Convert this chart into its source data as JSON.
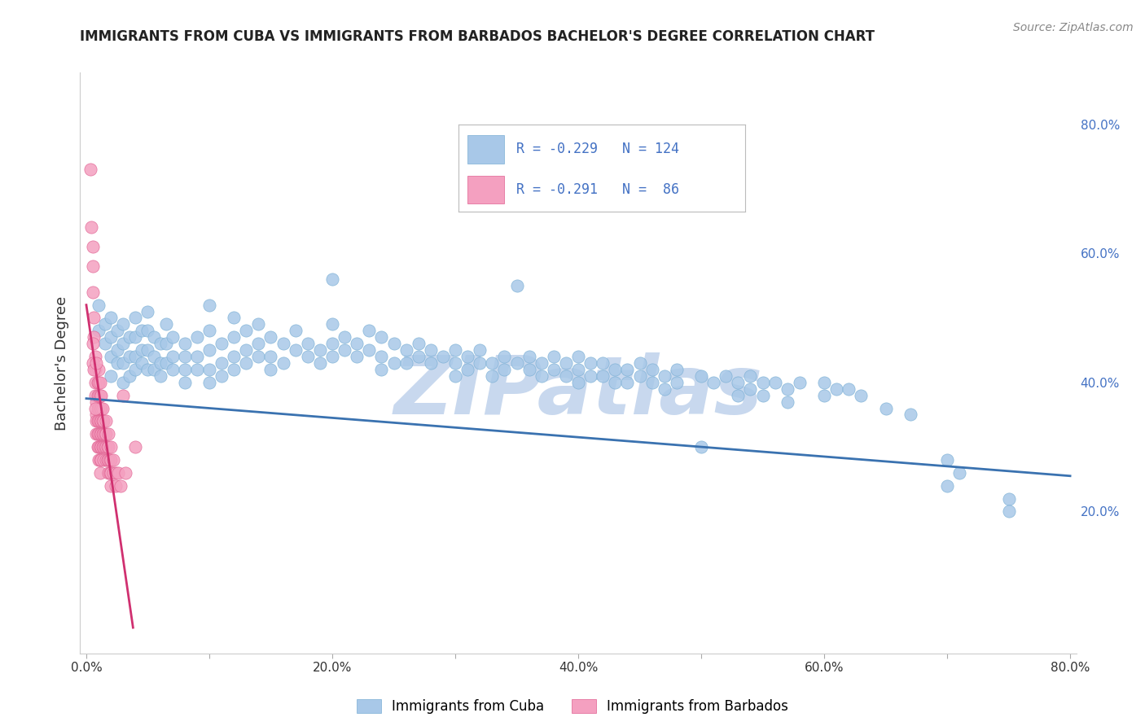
{
  "title": "IMMIGRANTS FROM CUBA VS IMMIGRANTS FROM BARBADOS BACHELOR'S DEGREE CORRELATION CHART",
  "source_text": "Source: ZipAtlas.com",
  "ylabel": "Bachelor's Degree",
  "xlim": [
    -0.005,
    0.805
  ],
  "ylim": [
    -0.02,
    0.88
  ],
  "xticks": [
    0.0,
    0.1,
    0.2,
    0.3,
    0.4,
    0.5,
    0.6,
    0.7,
    0.8
  ],
  "xticklabels": [
    "0.0%",
    "",
    "20.0%",
    "",
    "40.0%",
    "",
    "60.0%",
    "",
    "80.0%"
  ],
  "yticks_right": [
    0.2,
    0.4,
    0.6,
    0.8
  ],
  "ytick_labels_right": [
    "20.0%",
    "40.0%",
    "60.0%",
    "80.0%"
  ],
  "legend_r1": "-0.229",
  "legend_n1": "124",
  "legend_r2": "-0.291",
  "legend_n2": "86",
  "cuba_color": "#a8c8e8",
  "barbados_color": "#f4a0c0",
  "cuba_edge_color": "#7aafd4",
  "barbados_edge_color": "#e06090",
  "cuba_line_color": "#3a72b0",
  "barbados_line_color": "#d03070",
  "watermark": "ZIPatlas",
  "watermark_color": "#c8d8ee",
  "background_color": "#ffffff",
  "grid_color": "#cccccc",
  "legend_blue": "#4472c4",
  "cuba_scatter": [
    [
      0.01,
      0.52
    ],
    [
      0.01,
      0.48
    ],
    [
      0.015,
      0.49
    ],
    [
      0.015,
      0.46
    ],
    [
      0.02,
      0.5
    ],
    [
      0.02,
      0.47
    ],
    [
      0.02,
      0.44
    ],
    [
      0.02,
      0.41
    ],
    [
      0.025,
      0.48
    ],
    [
      0.025,
      0.45
    ],
    [
      0.025,
      0.43
    ],
    [
      0.03,
      0.49
    ],
    [
      0.03,
      0.46
    ],
    [
      0.03,
      0.43
    ],
    [
      0.03,
      0.4
    ],
    [
      0.035,
      0.47
    ],
    [
      0.035,
      0.44
    ],
    [
      0.035,
      0.41
    ],
    [
      0.04,
      0.5
    ],
    [
      0.04,
      0.47
    ],
    [
      0.04,
      0.44
    ],
    [
      0.04,
      0.42
    ],
    [
      0.045,
      0.48
    ],
    [
      0.045,
      0.45
    ],
    [
      0.045,
      0.43
    ],
    [
      0.05,
      0.51
    ],
    [
      0.05,
      0.48
    ],
    [
      0.05,
      0.45
    ],
    [
      0.05,
      0.42
    ],
    [
      0.055,
      0.47
    ],
    [
      0.055,
      0.44
    ],
    [
      0.055,
      0.42
    ],
    [
      0.06,
      0.46
    ],
    [
      0.06,
      0.43
    ],
    [
      0.06,
      0.41
    ],
    [
      0.065,
      0.49
    ],
    [
      0.065,
      0.46
    ],
    [
      0.065,
      0.43
    ],
    [
      0.07,
      0.47
    ],
    [
      0.07,
      0.44
    ],
    [
      0.07,
      0.42
    ],
    [
      0.08,
      0.46
    ],
    [
      0.08,
      0.44
    ],
    [
      0.08,
      0.42
    ],
    [
      0.08,
      0.4
    ],
    [
      0.09,
      0.47
    ],
    [
      0.09,
      0.44
    ],
    [
      0.09,
      0.42
    ],
    [
      0.1,
      0.52
    ],
    [
      0.1,
      0.48
    ],
    [
      0.1,
      0.45
    ],
    [
      0.1,
      0.42
    ],
    [
      0.1,
      0.4
    ],
    [
      0.11,
      0.46
    ],
    [
      0.11,
      0.43
    ],
    [
      0.11,
      0.41
    ],
    [
      0.12,
      0.5
    ],
    [
      0.12,
      0.47
    ],
    [
      0.12,
      0.44
    ],
    [
      0.12,
      0.42
    ],
    [
      0.13,
      0.48
    ],
    [
      0.13,
      0.45
    ],
    [
      0.13,
      0.43
    ],
    [
      0.14,
      0.49
    ],
    [
      0.14,
      0.46
    ],
    [
      0.14,
      0.44
    ],
    [
      0.15,
      0.47
    ],
    [
      0.15,
      0.44
    ],
    [
      0.15,
      0.42
    ],
    [
      0.16,
      0.46
    ],
    [
      0.16,
      0.43
    ],
    [
      0.17,
      0.48
    ],
    [
      0.17,
      0.45
    ],
    [
      0.18,
      0.46
    ],
    [
      0.18,
      0.44
    ],
    [
      0.19,
      0.45
    ],
    [
      0.19,
      0.43
    ],
    [
      0.2,
      0.56
    ],
    [
      0.2,
      0.49
    ],
    [
      0.2,
      0.46
    ],
    [
      0.2,
      0.44
    ],
    [
      0.21,
      0.47
    ],
    [
      0.21,
      0.45
    ],
    [
      0.22,
      0.46
    ],
    [
      0.22,
      0.44
    ],
    [
      0.23,
      0.48
    ],
    [
      0.23,
      0.45
    ],
    [
      0.24,
      0.47
    ],
    [
      0.24,
      0.44
    ],
    [
      0.24,
      0.42
    ],
    [
      0.25,
      0.46
    ],
    [
      0.25,
      0.43
    ],
    [
      0.26,
      0.45
    ],
    [
      0.26,
      0.43
    ],
    [
      0.27,
      0.46
    ],
    [
      0.27,
      0.44
    ],
    [
      0.28,
      0.45
    ],
    [
      0.28,
      0.43
    ],
    [
      0.29,
      0.44
    ],
    [
      0.3,
      0.45
    ],
    [
      0.3,
      0.43
    ],
    [
      0.3,
      0.41
    ],
    [
      0.31,
      0.44
    ],
    [
      0.31,
      0.42
    ],
    [
      0.32,
      0.45
    ],
    [
      0.32,
      0.43
    ],
    [
      0.33,
      0.43
    ],
    [
      0.33,
      0.41
    ],
    [
      0.34,
      0.44
    ],
    [
      0.34,
      0.42
    ],
    [
      0.35,
      0.55
    ],
    [
      0.35,
      0.43
    ],
    [
      0.36,
      0.44
    ],
    [
      0.36,
      0.42
    ],
    [
      0.37,
      0.43
    ],
    [
      0.37,
      0.41
    ],
    [
      0.38,
      0.44
    ],
    [
      0.38,
      0.42
    ],
    [
      0.39,
      0.43
    ],
    [
      0.39,
      0.41
    ],
    [
      0.4,
      0.44
    ],
    [
      0.4,
      0.42
    ],
    [
      0.4,
      0.4
    ],
    [
      0.41,
      0.43
    ],
    [
      0.41,
      0.41
    ],
    [
      0.42,
      0.43
    ],
    [
      0.42,
      0.41
    ],
    [
      0.43,
      0.42
    ],
    [
      0.43,
      0.4
    ],
    [
      0.44,
      0.42
    ],
    [
      0.44,
      0.4
    ],
    [
      0.45,
      0.43
    ],
    [
      0.45,
      0.41
    ],
    [
      0.46,
      0.42
    ],
    [
      0.46,
      0.4
    ],
    [
      0.47,
      0.41
    ],
    [
      0.47,
      0.39
    ],
    [
      0.48,
      0.42
    ],
    [
      0.48,
      0.4
    ],
    [
      0.5,
      0.41
    ],
    [
      0.5,
      0.3
    ],
    [
      0.51,
      0.4
    ],
    [
      0.52,
      0.41
    ],
    [
      0.53,
      0.4
    ],
    [
      0.53,
      0.38
    ],
    [
      0.54,
      0.41
    ],
    [
      0.54,
      0.39
    ],
    [
      0.55,
      0.4
    ],
    [
      0.55,
      0.38
    ],
    [
      0.56,
      0.4
    ],
    [
      0.57,
      0.39
    ],
    [
      0.57,
      0.37
    ],
    [
      0.58,
      0.4
    ],
    [
      0.6,
      0.4
    ],
    [
      0.6,
      0.38
    ],
    [
      0.61,
      0.39
    ],
    [
      0.62,
      0.39
    ],
    [
      0.63,
      0.38
    ],
    [
      0.65,
      0.36
    ],
    [
      0.67,
      0.35
    ],
    [
      0.7,
      0.28
    ],
    [
      0.7,
      0.24
    ],
    [
      0.71,
      0.26
    ],
    [
      0.75,
      0.22
    ],
    [
      0.75,
      0.2
    ]
  ],
  "barbados_scatter": [
    [
      0.003,
      0.73
    ],
    [
      0.004,
      0.64
    ],
    [
      0.005,
      0.61
    ],
    [
      0.005,
      0.58
    ],
    [
      0.005,
      0.54
    ],
    [
      0.006,
      0.5
    ],
    [
      0.006,
      0.47
    ],
    [
      0.007,
      0.44
    ],
    [
      0.007,
      0.42
    ],
    [
      0.007,
      0.4
    ],
    [
      0.007,
      0.38
    ],
    [
      0.008,
      0.37
    ],
    [
      0.008,
      0.35
    ],
    [
      0.008,
      0.34
    ],
    [
      0.008,
      0.32
    ],
    [
      0.009,
      0.4
    ],
    [
      0.009,
      0.38
    ],
    [
      0.009,
      0.36
    ],
    [
      0.009,
      0.34
    ],
    [
      0.009,
      0.32
    ],
    [
      0.009,
      0.3
    ],
    [
      0.01,
      0.42
    ],
    [
      0.01,
      0.4
    ],
    [
      0.01,
      0.38
    ],
    [
      0.01,
      0.36
    ],
    [
      0.01,
      0.34
    ],
    [
      0.01,
      0.32
    ],
    [
      0.01,
      0.3
    ],
    [
      0.01,
      0.28
    ],
    [
      0.011,
      0.4
    ],
    [
      0.011,
      0.38
    ],
    [
      0.011,
      0.36
    ],
    [
      0.011,
      0.34
    ],
    [
      0.011,
      0.32
    ],
    [
      0.011,
      0.3
    ],
    [
      0.011,
      0.28
    ],
    [
      0.011,
      0.26
    ],
    [
      0.012,
      0.38
    ],
    [
      0.012,
      0.36
    ],
    [
      0.012,
      0.34
    ],
    [
      0.012,
      0.32
    ],
    [
      0.012,
      0.3
    ],
    [
      0.012,
      0.28
    ],
    [
      0.013,
      0.36
    ],
    [
      0.013,
      0.34
    ],
    [
      0.013,
      0.32
    ],
    [
      0.013,
      0.3
    ],
    [
      0.014,
      0.34
    ],
    [
      0.014,
      0.32
    ],
    [
      0.014,
      0.3
    ],
    [
      0.014,
      0.28
    ],
    [
      0.015,
      0.32
    ],
    [
      0.015,
      0.3
    ],
    [
      0.016,
      0.34
    ],
    [
      0.016,
      0.32
    ],
    [
      0.016,
      0.3
    ],
    [
      0.016,
      0.28
    ],
    [
      0.017,
      0.3
    ],
    [
      0.017,
      0.28
    ],
    [
      0.018,
      0.32
    ],
    [
      0.018,
      0.3
    ],
    [
      0.018,
      0.28
    ],
    [
      0.018,
      0.26
    ],
    [
      0.019,
      0.28
    ],
    [
      0.019,
      0.26
    ],
    [
      0.02,
      0.3
    ],
    [
      0.02,
      0.28
    ],
    [
      0.02,
      0.26
    ],
    [
      0.02,
      0.24
    ],
    [
      0.022,
      0.28
    ],
    [
      0.022,
      0.26
    ],
    [
      0.024,
      0.26
    ],
    [
      0.024,
      0.24
    ],
    [
      0.026,
      0.26
    ],
    [
      0.028,
      0.24
    ],
    [
      0.03,
      0.38
    ],
    [
      0.032,
      0.26
    ],
    [
      0.04,
      0.3
    ],
    [
      0.005,
      0.43
    ],
    [
      0.005,
      0.46
    ],
    [
      0.006,
      0.42
    ],
    [
      0.007,
      0.36
    ],
    [
      0.008,
      0.43
    ]
  ],
  "cuba_regression": {
    "x_start": 0.0,
    "x_end": 0.8,
    "y_start": 0.375,
    "y_end": 0.255
  },
  "barbados_regression": {
    "x_start": 0.0,
    "x_end": 0.038,
    "y_start": 0.52,
    "y_end": 0.02
  }
}
